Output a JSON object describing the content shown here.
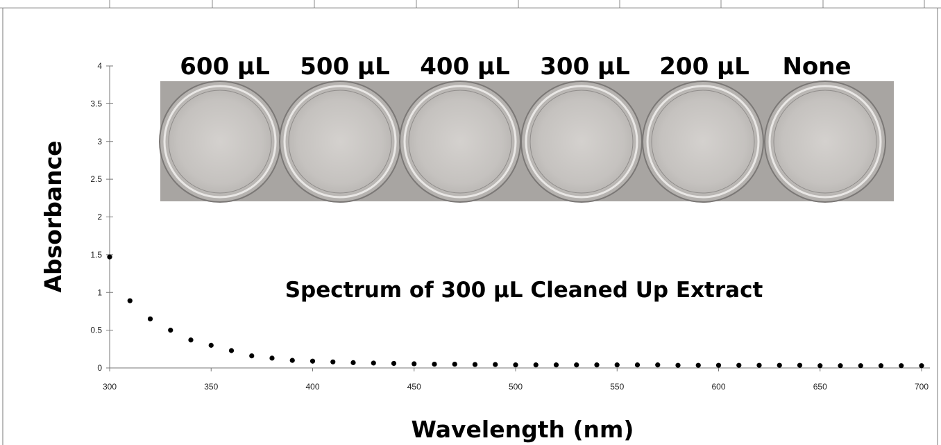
{
  "chart_data": {
    "type": "scatter",
    "title": "",
    "xlabel": "Wavelength (nm)",
    "ylabel": "Absorbance",
    "xlim": [
      300,
      700
    ],
    "ylim": [
      0,
      4
    ],
    "x_ticks": [
      "300",
      "350",
      "400",
      "450",
      "500",
      "550",
      "600",
      "650",
      "700"
    ],
    "y_ticks": [
      "0",
      "0.5",
      "1",
      "1.5",
      "2",
      "2.5",
      "3",
      "3.5",
      "4"
    ],
    "grid": false,
    "annotation": "Spectrum of 300 µL Cleaned Up Extract",
    "series": [
      {
        "x": [
          300,
          310,
          320,
          330,
          340,
          350,
          360,
          370,
          380,
          390,
          400,
          410,
          420,
          430,
          440,
          450,
          460,
          470,
          480,
          490,
          500,
          510,
          520,
          530,
          540,
          550,
          560,
          570,
          580,
          590,
          600,
          610,
          620,
          630,
          640,
          650,
          660,
          670,
          680,
          690,
          700
        ],
        "y": [
          1.47,
          0.89,
          0.65,
          0.5,
          0.37,
          0.3,
          0.23,
          0.16,
          0.13,
          0.1,
          0.09,
          0.08,
          0.07,
          0.065,
          0.06,
          0.055,
          0.05,
          0.05,
          0.045,
          0.045,
          0.04,
          0.04,
          0.04,
          0.04,
          0.04,
          0.04,
          0.04,
          0.04,
          0.035,
          0.035,
          0.035,
          0.035,
          0.035,
          0.035,
          0.035,
          0.03,
          0.03,
          0.03,
          0.03,
          0.03,
          0.03
        ]
      }
    ],
    "marker_color": "#000000"
  },
  "inset_photo": {
    "wells": [
      {
        "label": "600 µL"
      },
      {
        "label": "500 µL"
      },
      {
        "label": "400 µL"
      },
      {
        "label": "300 µL"
      },
      {
        "label": "200 µL"
      },
      {
        "label": "None"
      }
    ]
  }
}
